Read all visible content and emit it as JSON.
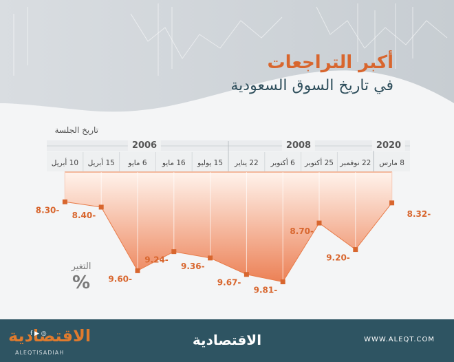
{
  "header": {
    "title": "أكبر التراجعات",
    "subtitle": "في تاريخ السوق السعودية"
  },
  "axis": {
    "session_label": "تاريخ الجلسة",
    "change_label": "التغير",
    "percent_sign": "%"
  },
  "colors": {
    "accent": "#d8662e",
    "area_top": "#fff2ea",
    "area_bottom": "#ec8156",
    "title_dark": "#2f4f5c",
    "footer": "#2e5462"
  },
  "chart_data": {
    "type": "area",
    "title": "أكبر التراجعات",
    "subtitle": "في تاريخ السوق السعودية",
    "xlabel": "تاريخ الجلسة",
    "ylabel": "التغير %",
    "year_groups": [
      {
        "year": "2006",
        "labels": [
          "10 أبريل",
          "15 أبريل",
          "6 مايو",
          "16 مايو",
          "15 يوليو"
        ]
      },
      {
        "year": "2008",
        "labels": [
          "22 يناير",
          "6 أكتوبر",
          "25 أكتوبر",
          "22 نوفمبر"
        ]
      },
      {
        "year": "2020",
        "labels": [
          "8 مارس"
        ]
      }
    ],
    "categories": [
      "10 أبريل",
      "15 أبريل",
      "6 مايو",
      "16 مايو",
      "15 يوليو",
      "22 يناير",
      "6 أكتوبر",
      "25 أكتوبر",
      "22 نوفمبر",
      "8 مارس"
    ],
    "values": [
      -8.3,
      -8.4,
      -9.6,
      -9.24,
      -9.36,
      -9.67,
      -9.81,
      -8.7,
      -9.2,
      -8.32
    ],
    "data_labels": [
      "8.30-",
      "8.40-",
      "9.60-",
      "9.24-",
      "9.36-",
      "9.67-",
      "9.81-",
      "8.70-",
      "9.20-",
      "8.32-"
    ],
    "ylim": [
      -10.05,
      -7.4
    ],
    "grid": true
  },
  "footer": {
    "logo_text": "الاقتصادية",
    "handle": "ALEQTISADIAH",
    "social": "f ▶ ◎",
    "website": "WWW.ALEQT.COM"
  }
}
